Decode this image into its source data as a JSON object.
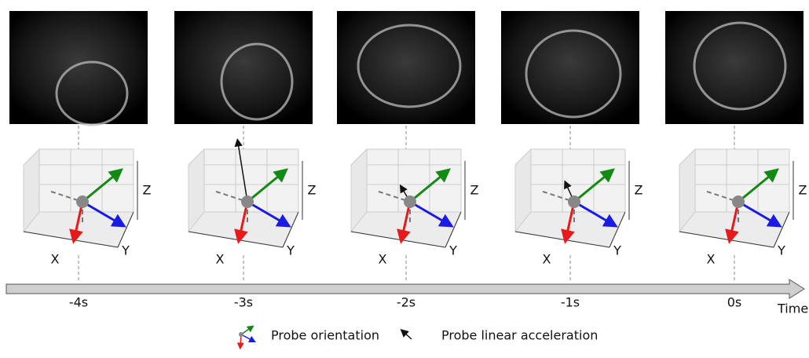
{
  "panels": [
    {
      "time": "-4s",
      "axes": {
        "x": "X",
        "y": "Y",
        "z": "Z"
      }
    },
    {
      "time": "-3s",
      "axes": {
        "x": "X",
        "y": "Y",
        "z": "Z"
      }
    },
    {
      "time": "-2s",
      "axes": {
        "x": "X",
        "y": "Y",
        "z": "Z"
      }
    },
    {
      "time": "-1s",
      "axes": {
        "x": "X",
        "y": "Y",
        "z": "Z"
      }
    },
    {
      "time": "0s",
      "axes": {
        "x": "X",
        "y": "Y",
        "z": "Z"
      }
    }
  ],
  "timeline_label": "Time",
  "legend": {
    "orientation": "Probe orientation",
    "acceleration": "Probe linear acceleration"
  }
}
